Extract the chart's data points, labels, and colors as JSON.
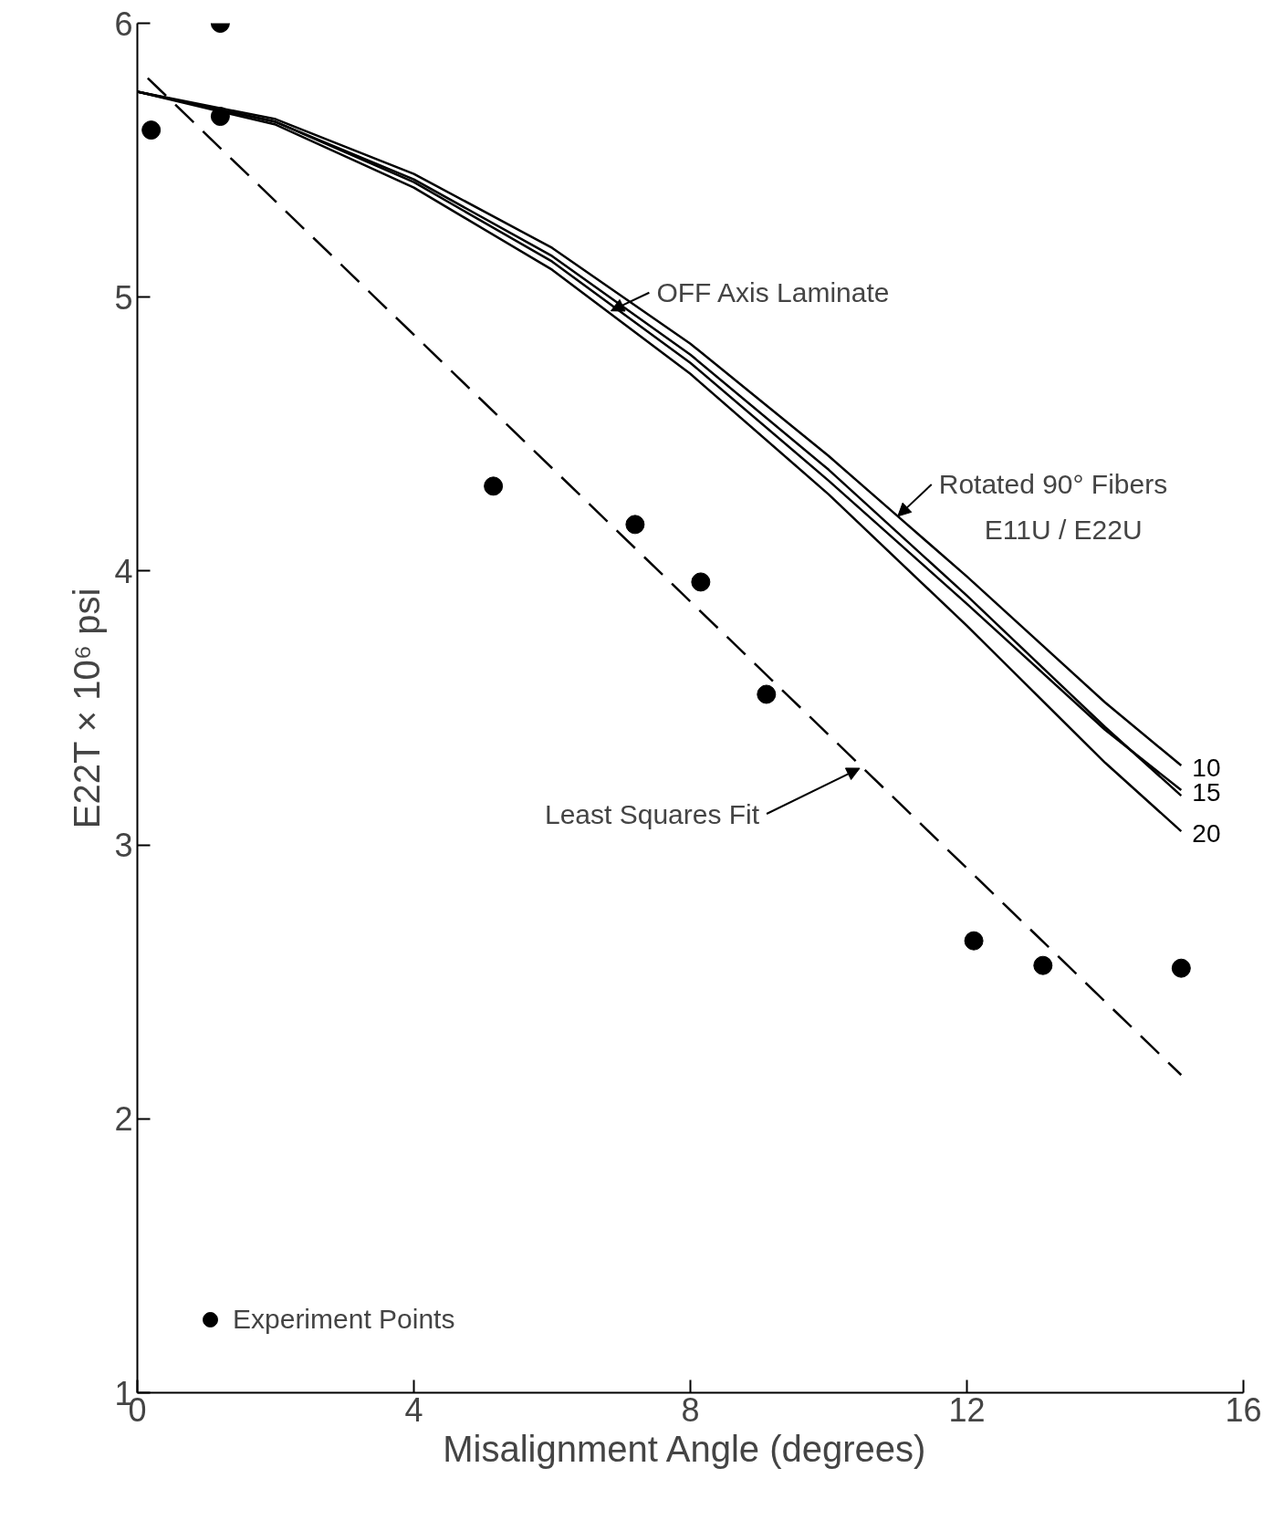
{
  "chart_data": {
    "type": "line",
    "xlabel": "Misalignment Angle  (degrees)",
    "ylabel": "E22T × 10⁶ psi",
    "xlim": [
      0,
      16
    ],
    "ylim": [
      1,
      6
    ],
    "xticks": [
      0,
      4,
      8,
      12,
      16
    ],
    "yticks": [
      1,
      2,
      3,
      4,
      5,
      6
    ],
    "grid": false,
    "legend": "bottom left",
    "marker": "none",
    "line_style": "solid",
    "series": [
      {
        "type": "scatter",
        "name": "Experiment Points",
        "color": "#000000",
        "marker": "circle",
        "x": [
          0.2,
          1.2,
          1.2,
          5.15,
          7.2,
          8.15,
          9.1,
          12.1,
          13.1,
          15.1
        ],
        "values": [
          5.61,
          6.0,
          5.66,
          4.31,
          4.17,
          3.96,
          3.55,
          2.65,
          2.56,
          2.55
        ]
      },
      {
        "color": "#000000",
        "line_style": "dashed",
        "x": [
          0.15,
          15.1
        ],
        "values": [
          5.8,
          2.16
        ]
      },
      {
        "color": "#000000",
        "x": [
          0,
          2,
          4,
          6,
          8,
          10,
          12,
          14,
          15.1
        ],
        "values": [
          5.75,
          5.64,
          5.43,
          5.15,
          4.79,
          4.37,
          3.91,
          3.43,
          3.18
        ]
      },
      {
        "name": "10",
        "color": "#000000",
        "x": [
          0,
          2,
          4,
          6,
          8,
          10,
          11,
          12,
          14,
          15.1
        ],
        "values": [
          5.75,
          5.65,
          5.45,
          5.18,
          4.83,
          4.42,
          4.2,
          3.98,
          3.52,
          3.29
        ]
      },
      {
        "name": "15",
        "color": "#000000",
        "x": [
          0,
          2,
          4,
          6,
          8,
          10,
          12,
          14,
          15.1
        ],
        "values": [
          5.75,
          5.64,
          5.42,
          5.13,
          4.76,
          4.33,
          3.88,
          3.42,
          3.2
        ]
      },
      {
        "name": "20",
        "color": "#000000",
        "x": [
          0,
          2,
          4,
          6,
          8,
          10,
          12,
          14,
          15.1
        ],
        "values": [
          5.75,
          5.63,
          5.4,
          5.1,
          4.72,
          4.28,
          3.8,
          3.3,
          3.05
        ]
      }
    ],
    "annotations": [
      {
        "text": "OFF Axis Laminate",
        "x": 6.85,
        "y": 4.95
      },
      {
        "text": "Least Squares Fit",
        "x": 10.45,
        "y": 3.28
      },
      {
        "text": "Rotated 90° Fibers",
        "x": 11,
        "y": 4.2
      },
      "E11U / E22U"
    ]
  }
}
